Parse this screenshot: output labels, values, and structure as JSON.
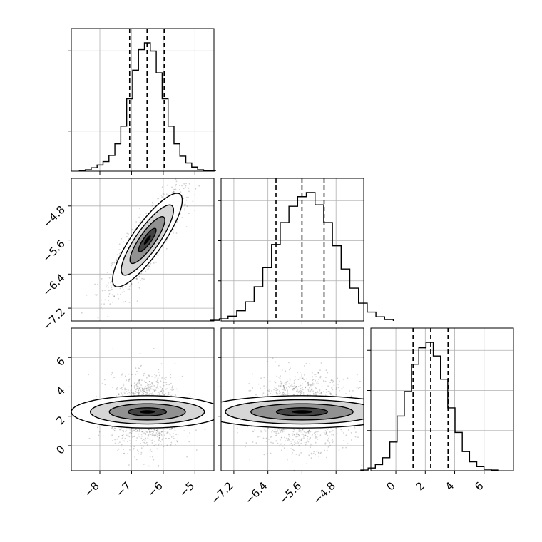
{
  "chart_data": {
    "type": "corner",
    "title": "",
    "grid": true,
    "quantiles": [
      0.16,
      0.5,
      0.84
    ],
    "parameters": [
      {
        "mean": -6.5,
        "std": 0.55,
        "range": [
          -8.9,
          -4.4
        ],
        "ticks": [
          -8,
          -7,
          -6,
          -5
        ],
        "tick_labels": [
          "−8",
          "−7",
          "−6",
          "−5"
        ],
        "quantile_values": [
          -7.06,
          -6.51,
          -5.97
        ],
        "hist_counts": [
          0.5,
          1.0,
          2.5,
          4.5,
          7.0,
          11.5,
          20.0,
          33.0,
          53.0,
          74.0,
          89.0,
          94.0,
          88.0,
          72.0,
          53.0,
          33.0,
          20.0,
          11.0,
          6.0,
          3.0,
          1.0,
          0.5,
          0.2
        ]
      },
      {
        "mean": -5.6,
        "std": 0.55,
        "range": [
          -7.5,
          -4.15
        ],
        "ticks": [
          -7.2,
          -6.4,
          -5.6,
          -4.8
        ],
        "tick_labels": [
          "−7.2",
          "−6.4",
          "−5.6",
          "−4.8"
        ],
        "quantile_values": [
          -6.21,
          -5.6,
          -5.08
        ],
        "hist_counts": [
          0.5,
          1.5,
          3.5,
          7.5,
          14.0,
          25.0,
          39.0,
          56.0,
          72.0,
          84.0,
          91.0,
          94.0,
          85.0,
          72.0,
          55.0,
          38.0,
          24.0,
          13.0,
          6.5,
          3.0,
          1.0
        ]
      },
      {
        "mean": 2.3,
        "std": 1.2,
        "range": [
          -1.7,
          8.0
        ],
        "ticks": [
          0,
          2,
          4,
          6
        ],
        "tick_labels": [
          "0",
          "2",
          "4",
          "6"
        ],
        "quantile_values": [
          1.17,
          2.37,
          3.55
        ],
        "hist_counts": [
          0.5,
          2.0,
          4.5,
          9.5,
          21.0,
          40.0,
          58.0,
          78.0,
          90.0,
          94.0,
          84.0,
          67.0,
          46.0,
          28.0,
          14.0,
          6.5,
          3.0,
          1.0,
          0.5
        ]
      }
    ],
    "correlations": [
      [
        1,
        0.85,
        0.0
      ],
      [
        0.85,
        1,
        0.0
      ],
      [
        0.0,
        0.0,
        1
      ]
    ],
    "colors": {
      "line": "#000000",
      "grid": "#b0b0b0",
      "points": "#000000",
      "density": "#000000"
    }
  }
}
